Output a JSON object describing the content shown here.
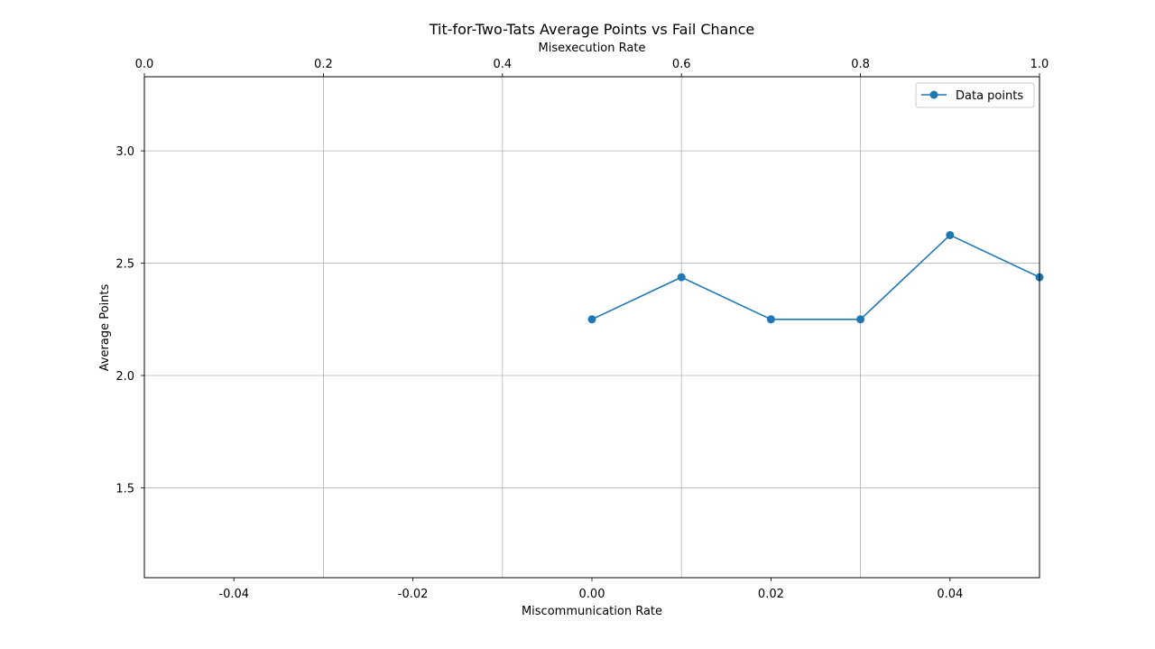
{
  "chart_data": {
    "type": "line",
    "title": "Tit-for-Two-Tats Average Points vs Fail Chance",
    "xlabel": "Miscommunication Rate",
    "ylabel": "Average Points",
    "x2label": "Misexecution Rate",
    "xlim": [
      -0.05,
      0.05
    ],
    "ylim": [
      1.1,
      3.33
    ],
    "x2lim": [
      0.0,
      1.0
    ],
    "x_ticks": [
      "-0.04",
      "-0.02",
      "0.00",
      "0.02",
      "0.04"
    ],
    "y_ticks": [
      "1.5",
      "2.0",
      "2.5",
      "3.0"
    ],
    "x2_ticks": [
      "0.0",
      "0.2",
      "0.4",
      "0.6",
      "0.8",
      "1.0"
    ],
    "grid": true,
    "grid_axis": "top",
    "legend_position": "upper right",
    "series": [
      {
        "name": "Data points",
        "color": "#1f77b4",
        "marker": "circle",
        "x": [
          0.0,
          0.01,
          0.02,
          0.03,
          0.04,
          0.05
        ],
        "y": [
          2.25,
          2.4375,
          2.25,
          2.25,
          2.625,
          2.4375
        ]
      }
    ]
  }
}
